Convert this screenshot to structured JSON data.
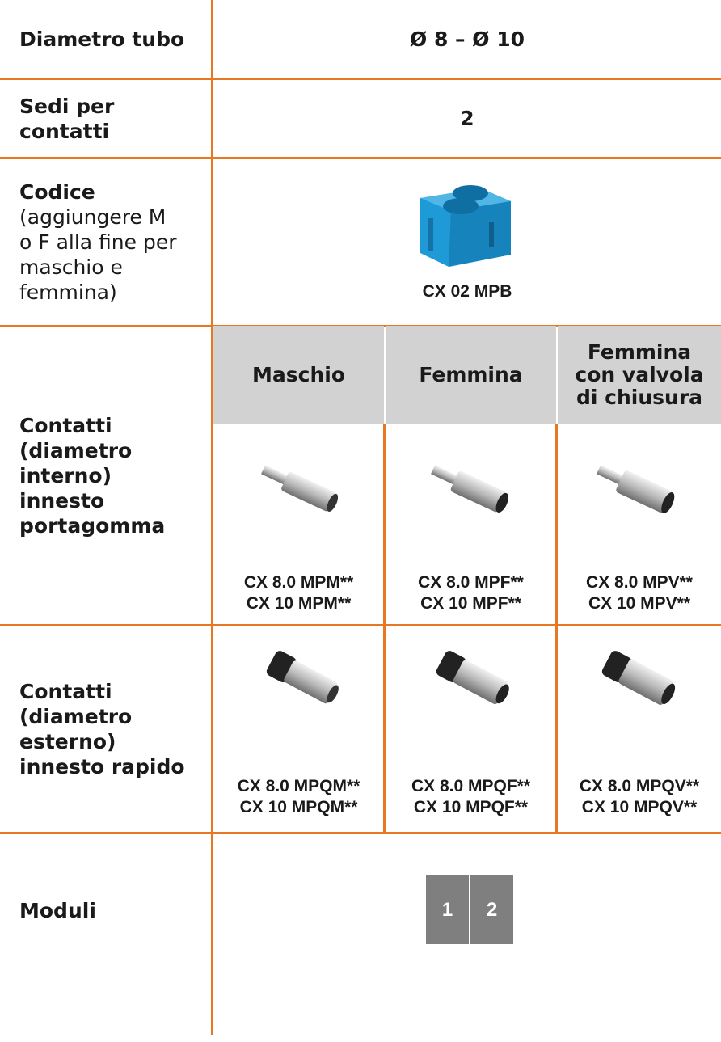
{
  "rows": [
    {
      "label": "Diametro tubo",
      "value": "Ø 8 – Ø 10"
    },
    {
      "label": "Sedi per contatti",
      "value": "2"
    },
    {
      "label": "Codice",
      "note": "(aggiungere M o F alla fine per maschio e femmina)",
      "code": "CX 02 MPB"
    },
    {
      "label": "Contatti (diametro interno) innesto portagomma",
      "headers": [
        "Maschio",
        "Femmina",
        "Femmina con valvola di chiusura"
      ],
      "codes": [
        [
          "CX 8.0 MPM**",
          "CX 10 MPM**"
        ],
        [
          "CX 8.0 MPF**",
          "CX 10 MPF**"
        ],
        [
          "CX 8.0 MPV**",
          "CX 10 MPV**"
        ]
      ]
    },
    {
      "label": "Contatti (diametro esterno) innesto rapido",
      "codes": [
        [
          "CX 8.0 MPQM**",
          "CX 10 MPQM**"
        ],
        [
          "CX 8.0 MPQF**",
          "CX 10 MPQF**"
        ],
        [
          "CX 8.0 MPQV**",
          "CX 10 MPQV**"
        ]
      ]
    },
    {
      "label": "Moduli",
      "modules": [
        "1",
        "2"
      ]
    }
  ]
}
